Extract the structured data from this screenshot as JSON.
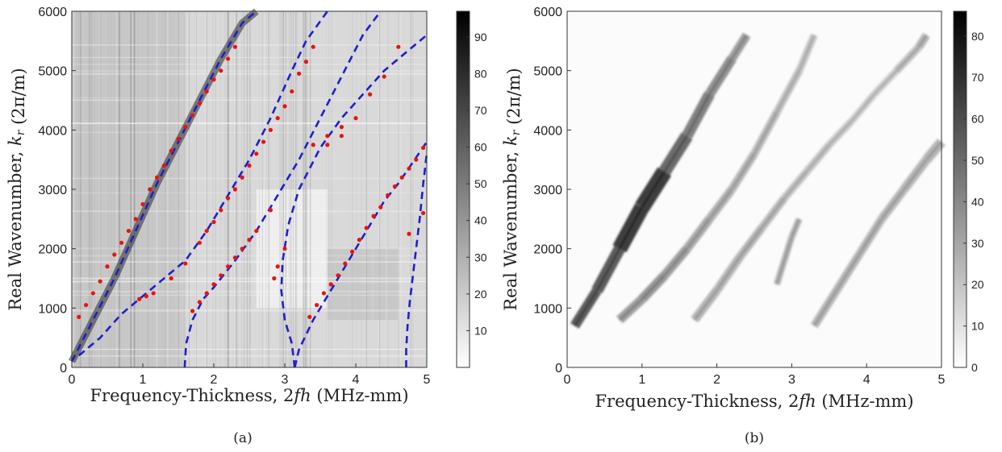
{
  "chart_data": [
    {
      "type": "heatmap",
      "caption": "(a)",
      "xlabel": "Frequency-Thickness, 2fh (MHz-mm)",
      "ylabel": "Real Wavenumber, k_r (2π/m)",
      "xlim": [
        0,
        5
      ],
      "ylim": [
        0,
        6000
      ],
      "xticks": [
        "0",
        "1",
        "2",
        "3",
        "4",
        "5"
      ],
      "yticks": [
        "0",
        "1000",
        "2000",
        "3000",
        "4000",
        "5000",
        "6000"
      ],
      "colorbar": {
        "min": 0,
        "max": 97,
        "ticks": [
          "10",
          "20",
          "30",
          "40",
          "50",
          "60",
          "70",
          "80",
          "90"
        ],
        "colormap": "white-to-black"
      },
      "colors": {
        "theory_curves": "#1f1fcc",
        "extracted_points": "#e8140c"
      },
      "theory_curves": [
        {
          "x": [
            0,
            0.3,
            0.6,
            0.9,
            1.2,
            1.5,
            1.8,
            2.1,
            2.4,
            2.6
          ],
          "y": [
            100,
            800,
            1500,
            2300,
            3100,
            3800,
            4500,
            5200,
            5800,
            6000
          ]
        },
        {
          "x": [
            0.1,
            0.4,
            0.7,
            1.0,
            1.3,
            1.6,
            1.9,
            2.2,
            2.5,
            2.8,
            3.1,
            3.3,
            3.6
          ],
          "y": [
            200,
            500,
            900,
            1200,
            1500,
            1800,
            2300,
            2900,
            3500,
            4200,
            5000,
            5500,
            6000
          ]
        },
        {
          "x": [
            1.59,
            1.61,
            1.7,
            1.85,
            2.0,
            2.3,
            2.6,
            2.9,
            3.2,
            3.5,
            3.8,
            4.1,
            4.35
          ],
          "y": [
            0,
            400,
            800,
            1150,
            1350,
            1800,
            2300,
            2900,
            3500,
            4200,
            4900,
            5600,
            6000
          ]
        },
        {
          "x": [
            3.14,
            3.1,
            3.0,
            2.95,
            2.97,
            3.05,
            3.2,
            3.5,
            3.8,
            4.1,
            4.4,
            4.7,
            5.0
          ],
          "y": [
            0,
            400,
            800,
            1300,
            1800,
            2400,
            3000,
            3700,
            4200,
            4600,
            5000,
            5300,
            5600
          ]
        },
        {
          "x": [
            3.14,
            3.2,
            3.4,
            3.6,
            3.8,
            4.0,
            4.2,
            4.4,
            4.6,
            4.8,
            5.0
          ],
          "y": [
            0,
            300,
            800,
            1200,
            1600,
            2000,
            2400,
            2800,
            3100,
            3450,
            3800
          ]
        },
        {
          "x": [
            4.71,
            4.71,
            4.73,
            4.76,
            4.8,
            4.85,
            4.9,
            4.95,
            5.0
          ],
          "y": [
            0,
            300,
            700,
            1100,
            1500,
            2000,
            2500,
            3100,
            3600
          ]
        }
      ],
      "extracted_points": [
        {
          "x": [
            0.1,
            0.2,
            0.3,
            0.4,
            0.5,
            0.6,
            0.7,
            0.8,
            0.9,
            1.0,
            1.1,
            1.2,
            1.3,
            1.4,
            1.5,
            1.6,
            1.7,
            1.8,
            1.9,
            2.0,
            2.1,
            2.2,
            2.3
          ],
          "y": [
            850,
            1050,
            1250,
            1450,
            1700,
            1900,
            2100,
            2300,
            2500,
            2750,
            3000,
            3200,
            3400,
            3650,
            3850,
            4050,
            4250,
            4450,
            4650,
            4850,
            5000,
            5200,
            5400
          ]
        },
        {
          "x": [
            0.95,
            1.05,
            1.15,
            1.4,
            1.6,
            1.8,
            1.9,
            2.0,
            2.1,
            2.2,
            2.3,
            2.4,
            2.5,
            2.6,
            2.7,
            2.8,
            2.9,
            3.0,
            3.1,
            3.2,
            3.3,
            3.4,
            3.6,
            3.8
          ],
          "y": [
            1150,
            1200,
            1250,
            1500,
            1750,
            2100,
            2300,
            2450,
            2650,
            2850,
            3000,
            3200,
            3400,
            3600,
            3800,
            4000,
            4200,
            4400,
            4650,
            4950,
            5150,
            5400,
            3750,
            3900
          ]
        },
        {
          "x": [
            1.7,
            1.8,
            1.9,
            2.0,
            2.1,
            2.2,
            2.3,
            2.4,
            2.5,
            2.6,
            2.8,
            2.85,
            2.9,
            3.0,
            3.4,
            3.6,
            3.8,
            4.0,
            4.2,
            4.4,
            4.6
          ],
          "y": [
            950,
            1100,
            1250,
            1400,
            1550,
            1700,
            1850,
            2000,
            2150,
            2300,
            2650,
            1500,
            1700,
            2000,
            3750,
            3900,
            4050,
            4200,
            4600,
            4900,
            5400
          ]
        },
        {
          "x": [
            3.35,
            3.45,
            3.55,
            3.65,
            3.75,
            3.85,
            3.95,
            4.05,
            4.15,
            4.25,
            4.35,
            4.45,
            4.55,
            4.65,
            4.75,
            4.85,
            4.95,
            4.75,
            4.95
          ],
          "y": [
            850,
            1050,
            1250,
            1400,
            1550,
            1750,
            1950,
            2150,
            2350,
            2550,
            2700,
            2900,
            3050,
            3200,
            3350,
            3500,
            3700,
            2250,
            2600
          ]
        }
      ]
    },
    {
      "type": "heatmap",
      "caption": "(b)",
      "xlabel": "Frequency-Thickness, 2fh (MHz-mm)",
      "ylabel": "Real Wavenumber, k_r (2π/m)",
      "xlim": [
        0,
        5
      ],
      "ylim": [
        0,
        6000
      ],
      "xticks": [
        "0",
        "1",
        "2",
        "3",
        "4",
        "5"
      ],
      "yticks": [
        "0",
        "1000",
        "2000",
        "3000",
        "4000",
        "5000",
        "6000"
      ],
      "colorbar": {
        "min": 0,
        "max": 86,
        "ticks": [
          "0",
          "10",
          "20",
          "30",
          "40",
          "50",
          "60",
          "70",
          "80"
        ],
        "colormap": "white-to-black"
      },
      "bands": [
        {
          "x": [
            0.1,
            0.4,
            0.7,
            1.0,
            1.3,
            1.6,
            1.9,
            2.2,
            2.4
          ],
          "y": [
            700,
            1300,
            2000,
            2700,
            3300,
            3900,
            4600,
            5200,
            5600
          ],
          "intensity": [
            55,
            55,
            55,
            75,
            55,
            45,
            40,
            35,
            30
          ],
          "width": [
            160,
            180,
            220,
            300,
            240,
            200,
            180,
            160,
            140
          ]
        },
        {
          "x": [
            0.7,
            1.0,
            1.3,
            1.6,
            1.9,
            2.2,
            2.5,
            2.8,
            3.1,
            3.3
          ],
          "y": [
            800,
            1150,
            1550,
            2000,
            2500,
            3000,
            3600,
            4300,
            5000,
            5600
          ],
          "intensity": [
            30,
            35,
            35,
            30,
            28,
            25,
            25,
            22,
            20,
            20
          ],
          "width": [
            150,
            160,
            160,
            150,
            150,
            140,
            140,
            130,
            130,
            120
          ]
        },
        {
          "x": [
            1.7,
            2.0,
            2.3,
            2.6,
            2.9,
            3.2,
            3.5,
            3.8,
            4.1,
            4.4,
            4.7,
            4.8
          ],
          "y": [
            800,
            1300,
            1850,
            2350,
            2850,
            3300,
            3750,
            4150,
            4600,
            5000,
            5400,
            5600
          ],
          "intensity": [
            25,
            25,
            25,
            25,
            22,
            20,
            20,
            18,
            18,
            18,
            25,
            25
          ],
          "width": [
            150,
            150,
            140,
            140,
            130,
            130,
            130,
            120,
            120,
            120,
            140,
            140
          ]
        },
        {
          "x": [
            2.8,
            2.9,
            3.0,
            3.1
          ],
          "y": [
            1400,
            1800,
            2200,
            2500
          ],
          "intensity": [
            25,
            25,
            25,
            25
          ],
          "width": [
            110,
            110,
            110,
            110
          ]
        },
        {
          "x": [
            3.3,
            3.6,
            3.9,
            4.2,
            4.5,
            4.8,
            5.0
          ],
          "y": [
            700,
            1300,
            1900,
            2500,
            3000,
            3500,
            3800
          ],
          "intensity": [
            25,
            25,
            25,
            25,
            25,
            25,
            25
          ],
          "width": [
            140,
            140,
            140,
            140,
            150,
            160,
            180
          ]
        }
      ]
    }
  ]
}
